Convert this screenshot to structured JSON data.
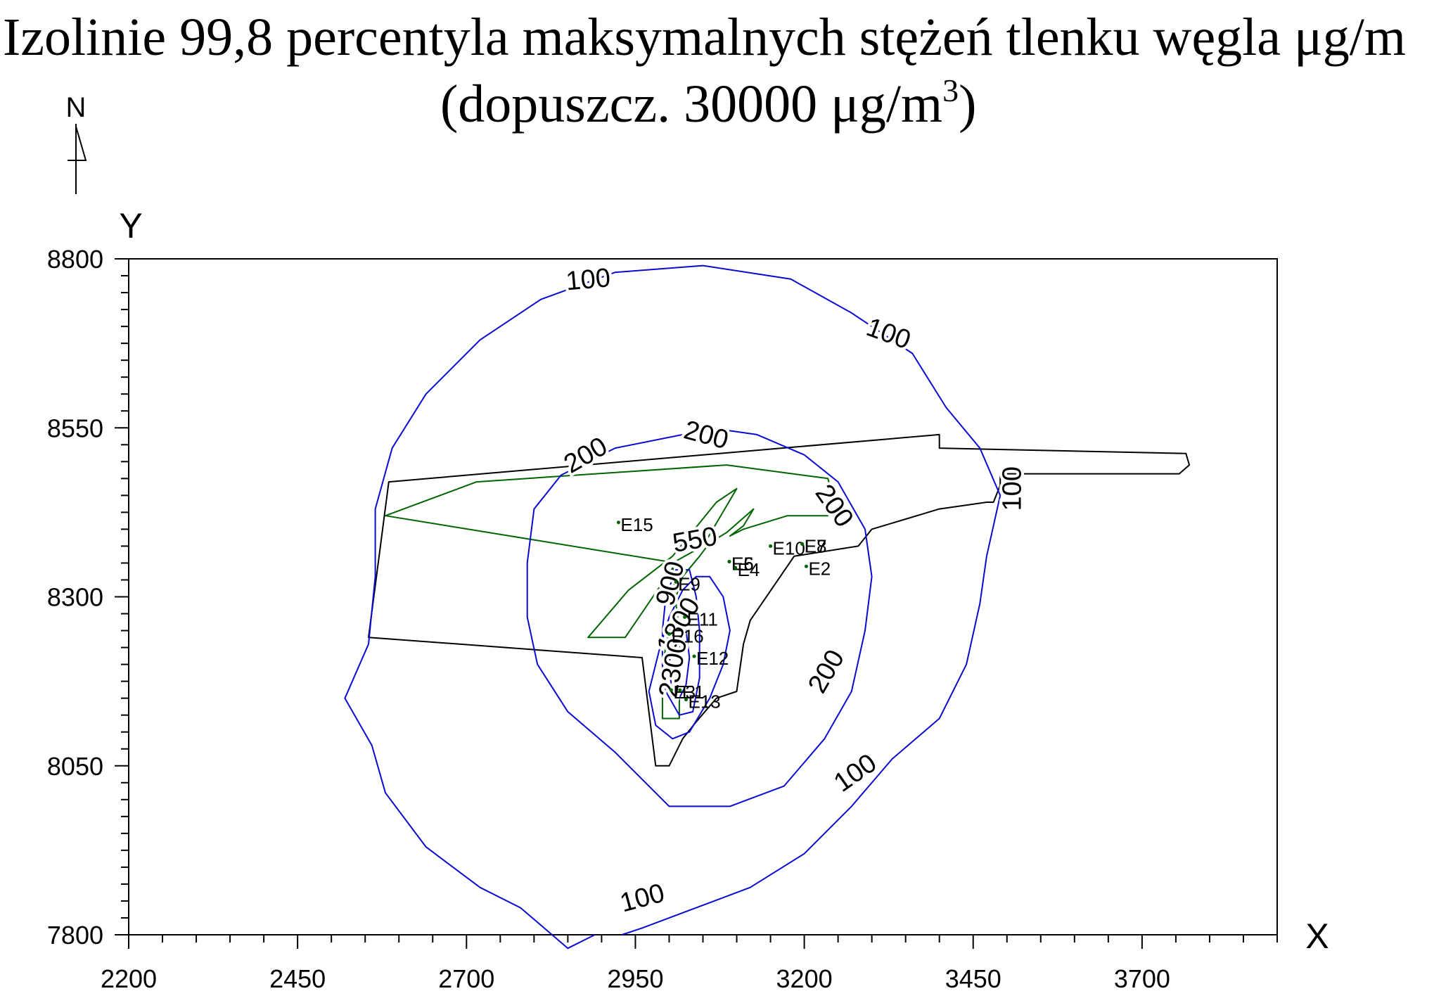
{
  "chart_data": {
    "type": "contour",
    "title_line1": "Izolinie 99,8 percentyla maksymalnych stężeń tlenku węgla μg/m",
    "title_line2_main": "(dopuszcz. 30000 μg/m",
    "title_line2_sup": "3",
    "title_line2_end": ")",
    "north_label": "N",
    "xlabel": "X",
    "ylabel": "Y",
    "xlim": [
      2200,
      3900
    ],
    "ylim": [
      7800,
      8800
    ],
    "x_ticks": [
      2200,
      2450,
      2700,
      2950,
      3200,
      3450,
      3700
    ],
    "y_ticks": [
      7800,
      8050,
      8300,
      8550,
      8800
    ],
    "x_tick_labels": [
      "2200",
      "2450",
      "2700",
      "2950",
      "3200",
      "3450",
      "3700"
    ],
    "y_tick_labels": [
      "7800",
      "8050",
      "8300",
      "8550",
      "8800"
    ],
    "colors": {
      "contour": "#0a0ad2",
      "boundary": "#000000",
      "installation": "#006400",
      "axis": "#000000"
    },
    "contours": [
      {
        "level": 100,
        "points": [
          [
            2890,
            7800
          ],
          [
            2850,
            7780
          ],
          [
            2780,
            7840
          ],
          [
            2720,
            7870
          ],
          [
            2640,
            7930
          ],
          [
            2580,
            8010
          ],
          [
            2560,
            8080
          ],
          [
            2520,
            8150
          ],
          [
            2555,
            8230
          ],
          [
            2565,
            8330
          ],
          [
            2565,
            8430
          ],
          [
            2590,
            8520
          ],
          [
            2640,
            8600
          ],
          [
            2720,
            8680
          ],
          [
            2810,
            8740
          ],
          [
            2920,
            8780
          ],
          [
            3050,
            8790
          ],
          [
            3180,
            8770
          ],
          [
            3270,
            8720
          ],
          [
            3360,
            8660
          ],
          [
            3410,
            8580
          ],
          [
            3460,
            8520
          ],
          [
            3490,
            8450
          ],
          [
            3470,
            8360
          ],
          [
            3460,
            8290
          ],
          [
            3440,
            8200
          ],
          [
            3400,
            8120
          ],
          [
            3330,
            8060
          ],
          [
            3270,
            7990
          ],
          [
            3200,
            7920
          ],
          [
            3120,
            7870
          ],
          [
            3040,
            7840
          ],
          [
            2960,
            7810
          ],
          [
            2930,
            7800
          ]
        ]
      },
      {
        "level": 200,
        "points": [
          [
            3020,
            8540
          ],
          [
            2920,
            8520
          ],
          [
            2840,
            8480
          ],
          [
            2800,
            8430
          ],
          [
            2790,
            8350
          ],
          [
            2790,
            8270
          ],
          [
            2805,
            8200
          ],
          [
            2850,
            8130
          ],
          [
            2920,
            8070
          ],
          [
            3000,
            7990
          ],
          [
            3090,
            7990
          ],
          [
            3170,
            8020
          ],
          [
            3230,
            8090
          ],
          [
            3270,
            8160
          ],
          [
            3290,
            8250
          ],
          [
            3300,
            8330
          ],
          [
            3290,
            8400
          ],
          [
            3250,
            8470
          ],
          [
            3200,
            8510
          ],
          [
            3130,
            8540
          ],
          [
            3060,
            8550
          ]
        ]
      },
      {
        "level": 550,
        "points": [
          [
            3060,
            8330
          ],
          [
            3080,
            8300
          ],
          [
            3090,
            8250
          ],
          [
            3080,
            8200
          ],
          [
            3060,
            8150
          ],
          [
            3030,
            8100
          ],
          [
            3005,
            8090
          ],
          [
            2980,
            8110
          ],
          [
            2970,
            8160
          ],
          [
            2985,
            8220
          ],
          [
            3000,
            8270
          ],
          [
            3020,
            8310
          ],
          [
            3040,
            8330
          ]
        ]
      },
      {
        "level": 900,
        "points": [
          [
            3010,
            8340
          ],
          [
            2995,
            8300
          ],
          [
            2990,
            8250
          ],
          [
            2990,
            8200
          ],
          [
            2995,
            8160
          ],
          [
            3015,
            8125
          ],
          [
            3035,
            8130
          ],
          [
            3045,
            8180
          ],
          [
            3045,
            8250
          ],
          [
            3040,
            8300
          ],
          [
            3030,
            8340
          ]
        ]
      },
      {
        "level": 1800,
        "points": [
          [
            3010,
            8260
          ],
          [
            3002,
            8230
          ],
          [
            3000,
            8190
          ],
          [
            3005,
            8160
          ],
          [
            3015,
            8150
          ],
          [
            3025,
            8170
          ],
          [
            3030,
            8210
          ],
          [
            3025,
            8250
          ]
        ]
      }
    ],
    "contour_labels": [
      {
        "text": "100",
        "x": 2880,
        "y": 8770,
        "rotate": -5
      },
      {
        "text": "100",
        "x": 3325,
        "y": 8690,
        "rotate": 20
      },
      {
        "text": "100",
        "x": 3507,
        "y": 8460,
        "rotate": -90
      },
      {
        "text": "100",
        "x": 3275,
        "y": 8040,
        "rotate": -35
      },
      {
        "text": "100",
        "x": 2960,
        "y": 7855,
        "rotate": -15
      },
      {
        "text": "200",
        "x": 2876,
        "y": 8510,
        "rotate": -30
      },
      {
        "text": "200",
        "x": 3055,
        "y": 8540,
        "rotate": 15
      },
      {
        "text": "200",
        "x": 3245,
        "y": 8435,
        "rotate": 55
      },
      {
        "text": "200",
        "x": 3232,
        "y": 8190,
        "rotate": -60
      },
      {
        "text": "550",
        "x": 3038,
        "y": 8385,
        "rotate": -10
      },
      {
        "text": "900",
        "x": 3001,
        "y": 8320,
        "rotate": -75
      },
      {
        "text": "1800",
        "x": 3013,
        "y": 8258,
        "rotate": -60
      },
      {
        "text": "2300",
        "x": 3005,
        "y": 8195,
        "rotate": -80
      }
    ],
    "boundaries": [
      {
        "name": "plant-boundary",
        "color": "#000000",
        "closed": true,
        "points": [
          [
            2585,
            8470
          ],
          [
            3400,
            8540
          ],
          [
            3400,
            8520
          ],
          [
            3765,
            8512
          ],
          [
            3770,
            8495
          ],
          [
            3755,
            8482
          ],
          [
            3490,
            8482
          ],
          [
            3490,
            8465
          ],
          [
            3480,
            8440
          ],
          [
            3470,
            8440
          ],
          [
            3400,
            8430
          ],
          [
            3300,
            8400
          ],
          [
            3280,
            8375
          ],
          [
            3185,
            8360
          ],
          [
            3120,
            8265
          ],
          [
            3110,
            8230
          ],
          [
            3100,
            8160
          ],
          [
            3070,
            8150
          ],
          [
            3040,
            8115
          ],
          [
            3020,
            8090
          ],
          [
            3000,
            8050
          ],
          [
            2980,
            8050
          ],
          [
            2960,
            8210
          ],
          [
            2555,
            8240
          ]
        ]
      },
      {
        "name": "installation-outline",
        "color": "#006400",
        "closed": true,
        "points": [
          [
            2580,
            8420
          ],
          [
            2715,
            8470
          ],
          [
            3085,
            8495
          ],
          [
            3235,
            8475
          ],
          [
            3240,
            8455
          ],
          [
            3235,
            8420
          ],
          [
            3175,
            8420
          ],
          [
            3110,
            8400
          ],
          [
            3090,
            8390
          ],
          [
            3110,
            8405
          ],
          [
            3125,
            8430
          ],
          [
            3085,
            8395
          ],
          [
            3060,
            8380
          ],
          [
            3045,
            8360
          ],
          [
            3020,
            8330
          ],
          [
            3010,
            8300
          ],
          [
            3000,
            8250
          ],
          [
            2990,
            8200
          ],
          [
            2990,
            8120
          ],
          [
            3015,
            8120
          ],
          [
            3015,
            8250
          ],
          [
            3010,
            8290
          ],
          [
            3005,
            8350
          ],
          [
            3050,
            8375
          ],
          [
            3100,
            8460
          ],
          [
            3070,
            8440
          ],
          [
            3005,
            8360
          ],
          [
            2940,
            8310
          ],
          [
            2880,
            8240
          ],
          [
            2935,
            8240
          ],
          [
            3010,
            8350
          ]
        ]
      }
    ],
    "emitters": [
      {
        "name": "E15",
        "x": 2925,
        "y": 8410
      },
      {
        "name": "E10",
        "x": 3150,
        "y": 8375
      },
      {
        "name": "E8",
        "x": 3197,
        "y": 8378
      },
      {
        "name": "E7",
        "x": 3197,
        "y": 8378
      },
      {
        "name": "E2",
        "x": 3203,
        "y": 8345
      },
      {
        "name": "E6",
        "x": 3089,
        "y": 8352
      },
      {
        "name": "E5",
        "x": 3089,
        "y": 8352
      },
      {
        "name": "E4",
        "x": 3098,
        "y": 8343
      },
      {
        "name": "E9",
        "x": 3010,
        "y": 8322
      },
      {
        "name": "E11",
        "x": 3023,
        "y": 8270
      },
      {
        "name": "E16",
        "x": 3000,
        "y": 8245
      },
      {
        "name": "E12",
        "x": 3037,
        "y": 8212
      },
      {
        "name": "E3",
        "x": 3003,
        "y": 8162
      },
      {
        "name": "E1",
        "x": 3016,
        "y": 8162
      },
      {
        "name": "E13",
        "x": 3025,
        "y": 8148
      }
    ]
  }
}
